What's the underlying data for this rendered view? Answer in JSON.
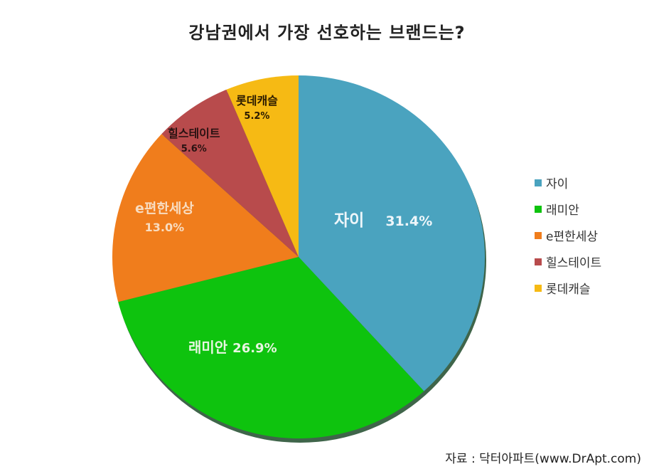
{
  "title": "강남권에서 가장 선호하는 브랜드는?",
  "source": "자료 : 닥터아파트(www.DrApt.com)",
  "chart_data": {
    "type": "pie",
    "title": "강남권에서 가장 선호하는 브랜드는?",
    "categories": [
      "자이",
      "래미안",
      "e편한세상",
      "힐스테이트",
      "롯데캐슬"
    ],
    "values": [
      31.4,
      26.9,
      13.0,
      5.6,
      5.2
    ],
    "colors": [
      "#4aa3bf",
      "#0ec30e",
      "#f07d1c",
      "#b84b4c",
      "#f6ba14"
    ],
    "data_labels": [
      "자이   31.4%",
      "래미안 26.9%",
      "e편한세상\n13.0%",
      "힐스테이트\n5.6%",
      "롯데캐슬\n5.2%"
    ],
    "start_angle": "12 o'clock",
    "direction": "clockwise",
    "legend_position": "right",
    "source": "자료 : 닥터아파트(www.DrApt.com)"
  },
  "legend": [
    {
      "label": "자이",
      "color": "#4aa3bf"
    },
    {
      "label": "래미안",
      "color": "#0ec30e"
    },
    {
      "label": "e편한세상",
      "color": "#f07d1c"
    },
    {
      "label": "힐스테이트",
      "color": "#b84b4c"
    },
    {
      "label": "롯데캐슬",
      "color": "#f6ba14"
    }
  ],
  "labels": [
    {
      "name": "자이",
      "value": "31.4%"
    },
    {
      "name": "래미안",
      "value": "26.9%"
    },
    {
      "name": "e편한세상",
      "value": "13.0%"
    },
    {
      "name": "힐스테이트",
      "value": "5.6%"
    },
    {
      "name": "롯데캐슬",
      "value": "5.2%"
    }
  ]
}
